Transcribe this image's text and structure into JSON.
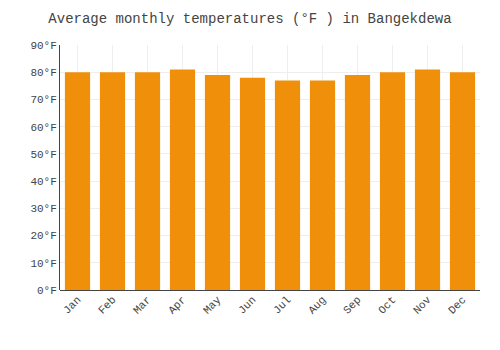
{
  "chart_data": {
    "type": "bar",
    "title": "Average monthly temperatures (°F ) in Bangekdewa",
    "categories": [
      "Jan",
      "Feb",
      "Mar",
      "Apr",
      "May",
      "Jun",
      "Jul",
      "Aug",
      "Sep",
      "Oct",
      "Nov",
      "Dec"
    ],
    "values": [
      80,
      80,
      80,
      81,
      79,
      78,
      77,
      77,
      79,
      80,
      81,
      80
    ],
    "color": "#F0900A",
    "ylim": [
      0,
      90
    ],
    "yticks": [
      {
        "value": 0,
        "label": "0°F"
      },
      {
        "value": 10,
        "label": "10°F"
      },
      {
        "value": 20,
        "label": "20°F"
      },
      {
        "value": 30,
        "label": "30°F"
      },
      {
        "value": 40,
        "label": "40°F"
      },
      {
        "value": 50,
        "label": "50°F"
      },
      {
        "value": 60,
        "label": "60°F"
      },
      {
        "value": 70,
        "label": "70°F"
      },
      {
        "value": 80,
        "label": "80°F"
      },
      {
        "value": 90,
        "label": "90°F"
      }
    ],
    "grid": true
  }
}
